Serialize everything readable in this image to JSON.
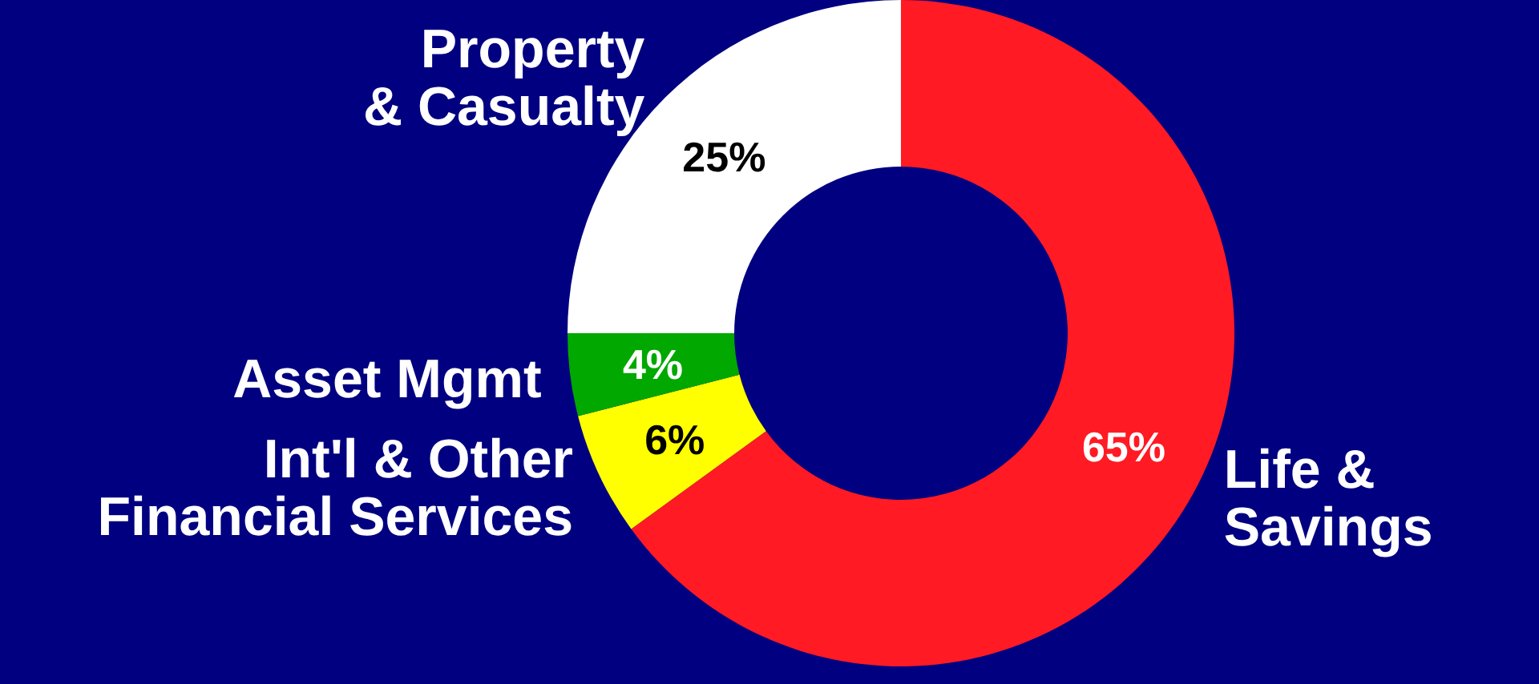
{
  "chart_data": {
    "type": "donut",
    "categories": [
      "Life &\nSavings",
      "Int'l & Other\nFinancial Services",
      "Asset Mgmt",
      "Property\n& Casualty"
    ],
    "values": [
      65,
      6,
      4,
      25
    ],
    "colors": [
      "#ff1a24",
      "#ffff00",
      "#00a800",
      "#ffffff"
    ],
    "value_labels": [
      "65%",
      "6%",
      "4%",
      "25%"
    ],
    "legend": false
  }
}
